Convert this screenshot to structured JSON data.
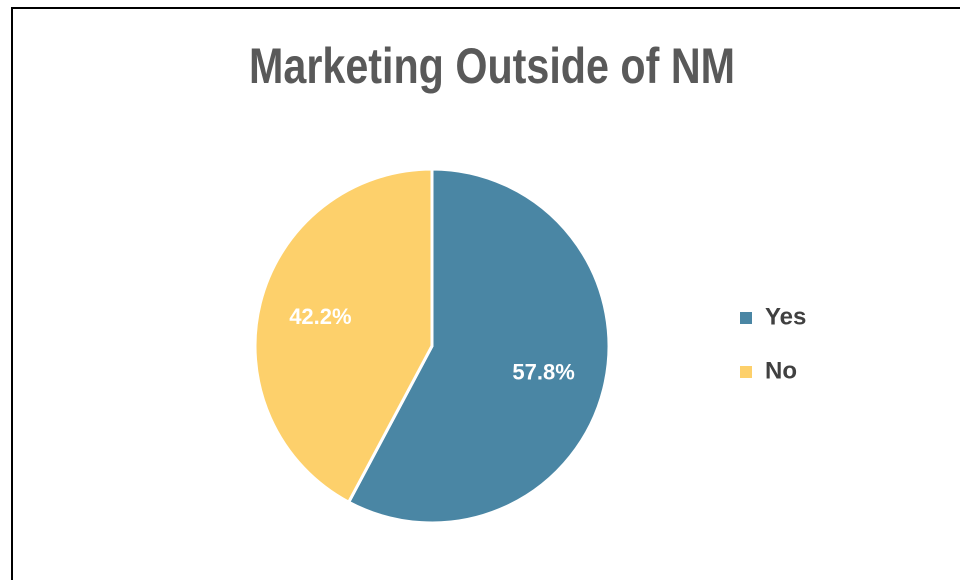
{
  "chart_data": {
    "type": "pie",
    "title": "Marketing Outside of NM",
    "categories": [
      "Yes",
      "No"
    ],
    "values": [
      57.8,
      42.2
    ],
    "value_labels": [
      "57.8%",
      "42.2%"
    ],
    "colors": [
      "#4a86a4",
      "#fdd06b"
    ],
    "legend": "right"
  }
}
